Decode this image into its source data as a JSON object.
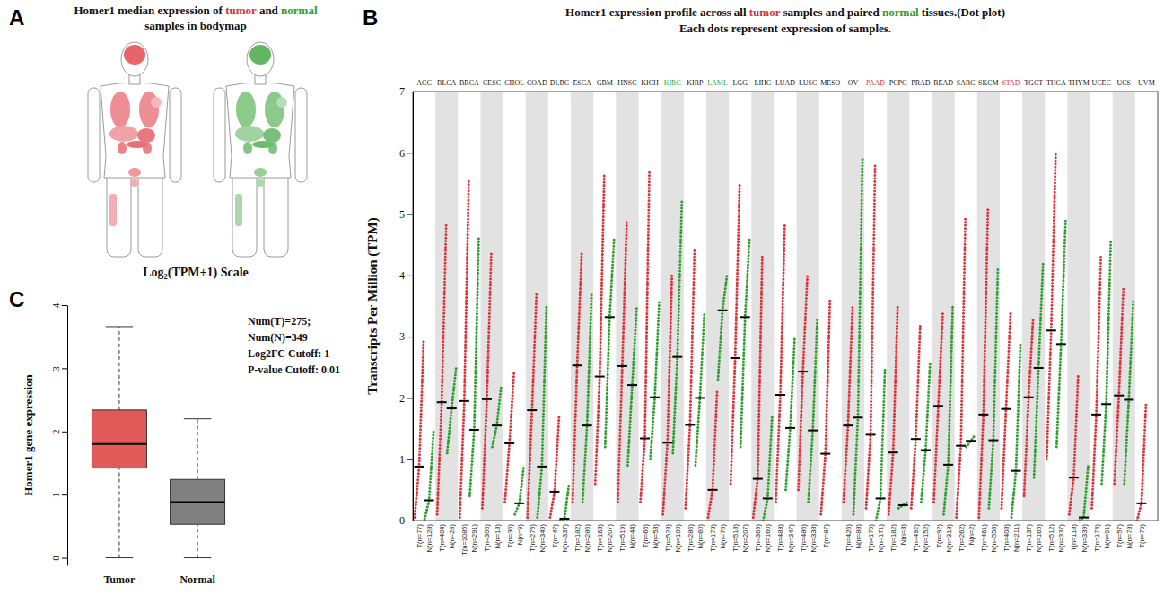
{
  "panel_labels": [
    "A",
    "B",
    "C"
  ],
  "bodymap": {
    "title": "Homer1 median expression of tumor and normal samples in bodymap",
    "caption": "Log₂(TPM+1) Scale",
    "series": [
      {
        "name": "tumor",
        "color": "#e0303a"
      },
      {
        "name": "normal",
        "color": "#2e9e2e"
      }
    ]
  },
  "chart_data": [
    {
      "type": "dot",
      "title": "Homer1 expression profile across all tumor samples and paired normal tissues.(Dot plot)",
      "subtitle": "Each dots represent expression of samples.",
      "y_label": "Transcripts Per Million (TPM)",
      "categories": [
        "ACC",
        "BLCA",
        "BRCA",
        "CESC",
        "CHOL",
        "COAD",
        "DLBC",
        "ESCA",
        "GBM",
        "HNSC",
        "KICH",
        "KIRC",
        "KIRP",
        "LAML",
        "LGG",
        "LIHC",
        "LUAD",
        "LUSC",
        "MESO",
        "OV",
        "PAAD",
        "PCPG",
        "PRAD",
        "READ",
        "SARC",
        "SKCM",
        "STAD",
        "TGCT",
        "THCA",
        "THYM",
        "UCEC",
        "UCS",
        "UVM"
      ],
      "label_series": [
        null,
        null,
        null,
        null,
        null,
        null,
        null,
        null,
        null,
        null,
        null,
        "normal",
        null,
        "normal",
        null,
        null,
        null,
        null,
        null,
        null,
        "tumor",
        null,
        null,
        null,
        null,
        null,
        "tumor",
        null,
        null,
        null,
        null,
        null,
        null
      ],
      "series": [
        {
          "name": "tumor",
          "color": "#e0303a",
          "values": [
            0.88,
            1.93,
            1.95,
            1.98,
            1.26,
            1.8,
            0.47,
            2.53,
            2.35,
            2.52,
            1.34,
            1.27,
            1.56,
            0.5,
            2.65,
            0.68,
            2.05,
            2.43,
            1.09,
            1.55,
            1.4,
            1.11,
            1.33,
            1.87,
            1.22,
            1.73,
            1.82,
            2.01,
            3.1,
            0.7,
            1.73,
            2.04,
            0.28
          ],
          "min": [
            0.05,
            0.1,
            0.05,
            0.2,
            0.3,
            0.05,
            0.05,
            0.3,
            0.6,
            0.3,
            0.3,
            0.1,
            0.2,
            0.05,
            0.6,
            0.05,
            0.3,
            0.5,
            0.1,
            0.3,
            0.2,
            0.1,
            0.2,
            0.3,
            0.05,
            0.05,
            0.2,
            0.4,
            1.0,
            0.1,
            0.2,
            0.6,
            0.0
          ],
          "max": [
            2.95,
            4.85,
            5.55,
            4.4,
            2.4,
            3.7,
            1.7,
            4.35,
            5.65,
            4.9,
            5.7,
            4.0,
            4.4,
            2.1,
            5.5,
            4.3,
            4.85,
            4.0,
            3.6,
            3.5,
            5.8,
            3.5,
            3.2,
            3.4,
            4.95,
            5.1,
            3.4,
            3.3,
            6.0,
            2.4,
            4.3,
            3.8,
            1.9
          ],
          "sample_labels": [
            "T(n=77)",
            "T(n=404)",
            "T(n=1085)",
            "T(n=306)",
            "T(n=36)",
            "T(n=275)",
            "T(n=47)",
            "T(n=182)",
            "T(n=163)",
            "T(n=519)",
            "T(n=66)",
            "T(n=523)",
            "T(n=286)",
            "T(n=173)",
            "T(n=518)",
            "T(n=369)",
            "T(n=483)",
            "T(n=486)",
            "T(n=87)",
            "T(n=426)",
            "T(n=179)",
            "T(n=182)",
            "T(n=492)",
            "T(n=92)",
            "T(n=262)",
            "T(n=461)",
            "T(n=408)",
            "T(n=137)",
            "T(n=512)",
            "T(n=118)",
            "T(n=174)",
            "T(n=57)",
            "T(n=79)"
          ]
        },
        {
          "name": "normal",
          "color": "#2e9e2e",
          "values": [
            0.33,
            1.83,
            1.48,
            1.55,
            0.28,
            0.88,
            0.03,
            1.55,
            3.32,
            2.21,
            2.01,
            2.67,
            2.0,
            3.43,
            3.32,
            0.36,
            1.51,
            1.47,
            null,
            1.68,
            0.36,
            0.25,
            1.15,
            0.91,
            1.3,
            1.31,
            0.81,
            2.49,
            2.88,
            0.05,
            1.9,
            1.97,
            null
          ],
          "min": [
            0.02,
            1.1,
            0.4,
            1.2,
            0.1,
            0.05,
            0.0,
            0.3,
            1.2,
            0.9,
            1.0,
            1.1,
            0.9,
            2.3,
            1.2,
            0.0,
            0.5,
            0.3,
            null,
            0.1,
            0.0,
            0.2,
            0.3,
            0.1,
            1.2,
            0.2,
            0.05,
            0.7,
            1.2,
            0.0,
            0.6,
            0.6,
            null
          ],
          "max": [
            1.45,
            2.5,
            4.6,
            2.2,
            0.9,
            3.5,
            0.6,
            3.7,
            4.6,
            3.5,
            3.6,
            5.2,
            3.4,
            4.0,
            4.6,
            1.7,
            3.0,
            3.3,
            null,
            5.9,
            2.5,
            0.3,
            2.6,
            3.5,
            1.4,
            4.1,
            2.9,
            4.2,
            4.9,
            0.9,
            4.55,
            3.6,
            null
          ],
          "sample_labels": [
            "N(n=128)",
            "N(n=28)",
            "N(n=291)",
            "N(n=13)",
            "N(n=9)",
            "N(n=349)",
            "N(n=337)",
            "N(n=286)",
            "N(n=207)",
            "N(n=44)",
            "N(n=53)",
            "N(n=100)",
            "N(n=60)",
            "N(n=70)",
            "N(n=207)",
            "N(n=160)",
            "N(n=347)",
            "N(n=338)",
            null,
            "N(n=88)",
            "N(n=171)",
            "N(n=3)",
            "N(n=152)",
            "N(n=318)",
            "N(n=2)",
            "N(n=558)",
            "N(n=211)",
            "N(n=165)",
            "N(n=337)",
            "N(n=339)",
            "N(n=91)",
            "N(n=78)",
            null
          ]
        }
      ],
      "ylim": [
        0,
        7
      ],
      "yticks": [
        0,
        1,
        2,
        3,
        4,
        5,
        6,
        7
      ]
    },
    {
      "type": "box",
      "categories": [
        "Tumor",
        "Normal"
      ],
      "colors": [
        "#e05a5a",
        "#808080"
      ],
      "y_label": "Homer1 gene expression",
      "whisker_low": [
        0,
        0
      ],
      "q1": [
        1.42,
        0.53
      ],
      "median": [
        1.8,
        0.88
      ],
      "q3": [
        2.34,
        1.24
      ],
      "whisker_high": [
        3.66,
        2.2
      ],
      "ylim": [
        -0.12,
        4
      ],
      "yticks": [
        0,
        1,
        2,
        3,
        4
      ],
      "annotations": [
        "Num(T)=275;",
        "Num(N)=349",
        "Log2FC Cutoff: 1",
        "P-value Cutoff: 0.01"
      ]
    }
  ]
}
